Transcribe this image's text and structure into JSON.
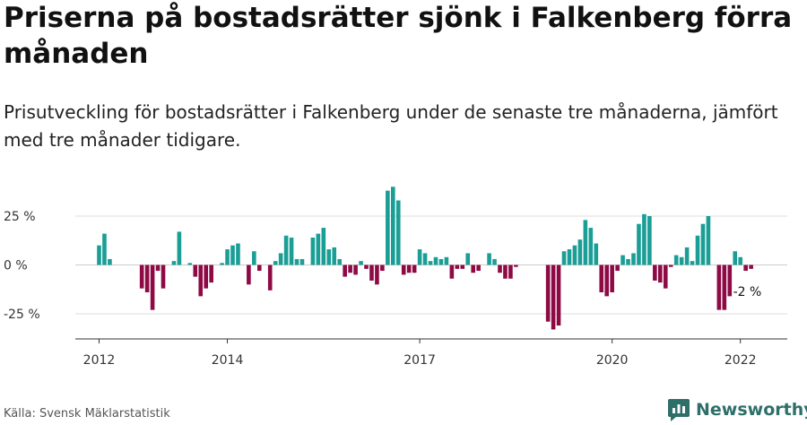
{
  "header": {
    "title": "Priserna på bostadsrätter sjönk i Falkenberg förra månaden",
    "subtitle": "Prisutveckling för bostadsrätter i Falkenberg under de senaste tre månaderna, jämfört med tre månader tidigare."
  },
  "footer": {
    "source": "Källa: Svensk Mäklarstatistik",
    "brand": "Newsworthy"
  },
  "colors": {
    "positive": "#1a9e96",
    "negative": "#8e0a45",
    "grid": "#dddddd",
    "axis": "#333333",
    "brand": "#2e6f6a"
  },
  "chart_data": {
    "type": "bar",
    "title": "Priserna på bostadsrätter sjönk i Falkenberg förra månaden",
    "xlabel": "",
    "ylabel": "",
    "ylim": [
      -38,
      40
    ],
    "y_ticks": [
      25,
      0,
      -25
    ],
    "y_tick_labels": [
      "25 %",
      "0 %",
      "-25 %"
    ],
    "x_ticks": [
      {
        "month_index": 0,
        "label": "2012"
      },
      {
        "month_index": 24,
        "label": "2014"
      },
      {
        "month_index": 60,
        "label": "2017"
      },
      {
        "month_index": 96,
        "label": "2020"
      },
      {
        "month_index": 120,
        "label": "2022"
      }
    ],
    "start": "2012-01",
    "last_label": "-2 %",
    "values": [
      10,
      16,
      3,
      null,
      null,
      null,
      null,
      null,
      -12,
      -14,
      -23,
      -3,
      -12,
      null,
      2,
      17,
      null,
      1,
      -6,
      -16,
      -12,
      -9,
      0,
      1,
      8,
      10,
      11,
      0,
      -10,
      7,
      -3,
      0,
      -13,
      2,
      6,
      15,
      14,
      3,
      3,
      0,
      14,
      16,
      19,
      8,
      9,
      3,
      -6,
      -4,
      -5,
      2,
      -2,
      -8,
      -10,
      -3,
      38,
      40,
      33,
      -5,
      -4,
      -4,
      8,
      6,
      2,
      4,
      3,
      4,
      -7,
      -2,
      -2,
      6,
      -4,
      -3,
      0,
      6,
      3,
      -4,
      -7,
      -7,
      -1,
      0,
      null,
      null,
      null,
      null,
      -29,
      -33,
      -31,
      7,
      8,
      10,
      13,
      23,
      19,
      11,
      -14,
      -16,
      -14,
      -3,
      5,
      3,
      6,
      21,
      26,
      25,
      -8,
      -9,
      -12,
      -1,
      5,
      4,
      9,
      2,
      15,
      21,
      25,
      0,
      -23,
      -23,
      -16,
      7,
      4,
      -3,
      -2
    ]
  }
}
